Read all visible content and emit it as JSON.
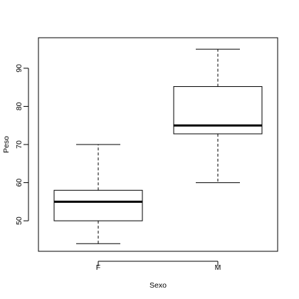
{
  "chart_data": {
    "type": "boxplot",
    "title": "",
    "xlabel": "Sexo",
    "ylabel": "Peso",
    "ylim": [
      42,
      98
    ],
    "y_ticks": [
      50,
      60,
      70,
      80,
      90
    ],
    "grid": false,
    "categories": [
      "F",
      "M"
    ],
    "boxes": [
      {
        "category": "F",
        "whisker_low": 44,
        "q1": 50,
        "median": 55,
        "q3": 58,
        "whisker_high": 70
      },
      {
        "category": "M",
        "whisker_low": 60,
        "q1": 72.8,
        "median": 75,
        "q3": 85.2,
        "whisker_high": 95
      }
    ]
  }
}
